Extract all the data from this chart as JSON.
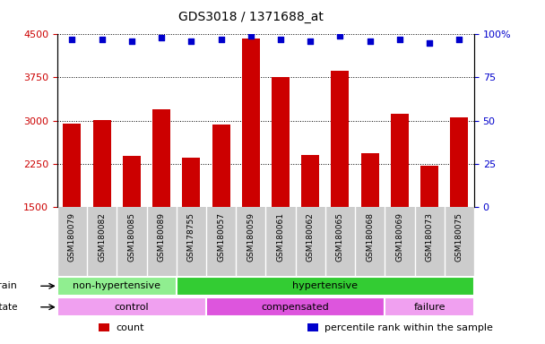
{
  "title": "GDS3018 / 1371688_at",
  "samples": [
    "GSM180079",
    "GSM180082",
    "GSM180085",
    "GSM180089",
    "GSM178755",
    "GSM180057",
    "GSM180059",
    "GSM180061",
    "GSM180062",
    "GSM180065",
    "GSM180068",
    "GSM180069",
    "GSM180073",
    "GSM180075"
  ],
  "counts": [
    2950,
    3010,
    2380,
    3200,
    2360,
    2930,
    4430,
    3760,
    2400,
    3860,
    2430,
    3110,
    2220,
    3060
  ],
  "percentile_ranks": [
    97,
    97,
    96,
    98,
    96,
    97,
    99,
    97,
    96,
    99,
    96,
    97,
    95,
    97
  ],
  "ylim_left": [
    1500,
    4500
  ],
  "ylim_right": [
    0,
    100
  ],
  "yticks_left": [
    1500,
    2250,
    3000,
    3750,
    4500
  ],
  "yticks_right": [
    0,
    25,
    50,
    75,
    100
  ],
  "bar_color": "#cc0000",
  "dot_color": "#0000cc",
  "grid_color": "#000000",
  "strain_groups": [
    {
      "label": "non-hypertensive",
      "start": 0,
      "end": 4,
      "color": "#90ee90"
    },
    {
      "label": "hypertensive",
      "start": 4,
      "end": 14,
      "color": "#33cc33"
    }
  ],
  "disease_groups": [
    {
      "label": "control",
      "start": 0,
      "end": 5,
      "color": "#f0a0f0"
    },
    {
      "label": "compensated",
      "start": 5,
      "end": 11,
      "color": "#dd55dd"
    },
    {
      "label": "failure",
      "start": 11,
      "end": 14,
      "color": "#f0a0f0"
    }
  ],
  "legend_items": [
    {
      "color": "#cc0000",
      "label": "count"
    },
    {
      "color": "#0000cc",
      "label": "percentile rank within the sample"
    }
  ],
  "right_axis_color": "#0000cc",
  "tick_label_color_left": "#cc0000",
  "tick_label_color_right": "#0000cc",
  "bg_color": "#ffffff",
  "plot_bg_color": "#ffffff",
  "xtick_bg_color": "#cccccc"
}
